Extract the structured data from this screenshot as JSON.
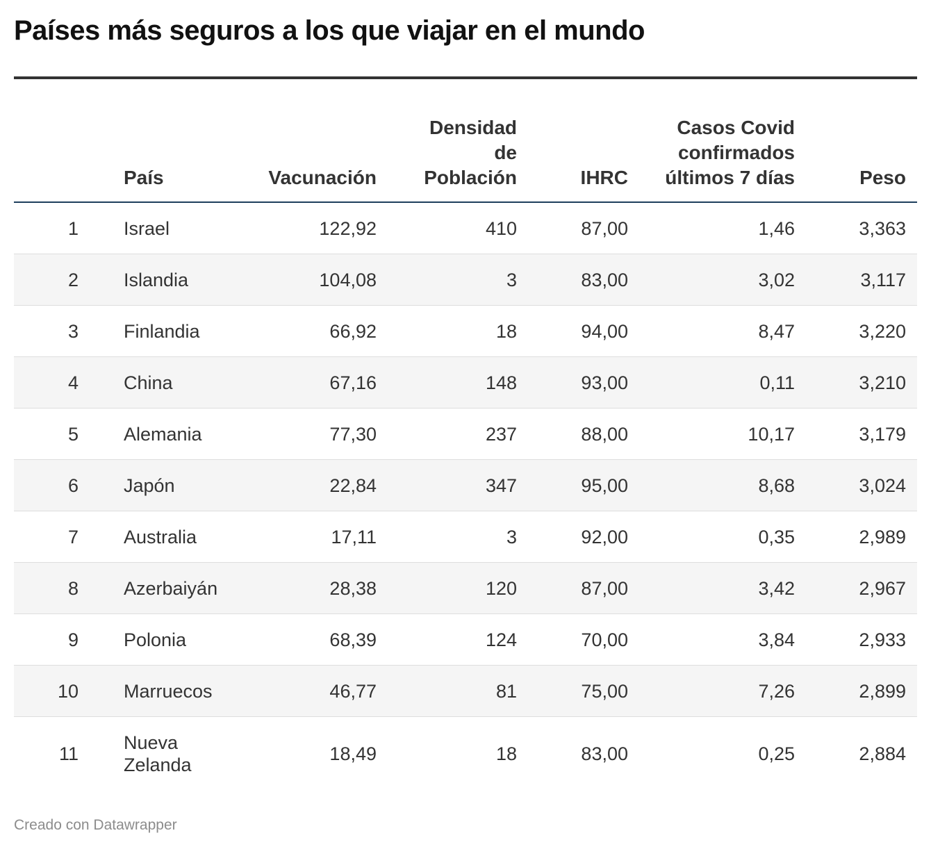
{
  "title": "Países más seguros a los que viajar en el mundo",
  "headers": {
    "rank": "",
    "pais": "País",
    "vacunacion": "Vacunación",
    "densidad": "Densidad de Población",
    "ihrc": "IHRC",
    "covid": "Casos Covid confirmados últimos 7 días",
    "peso": "Peso"
  },
  "rows": [
    {
      "rank": "1",
      "pais": "Israel",
      "vacunacion": "122,92",
      "densidad": "410",
      "ihrc": "87,00",
      "covid": "1,46",
      "peso": "3,363"
    },
    {
      "rank": "2",
      "pais": "Islandia",
      "vacunacion": "104,08",
      "densidad": "3",
      "ihrc": "83,00",
      "covid": "3,02",
      "peso": "3,117"
    },
    {
      "rank": "3",
      "pais": "Finlandia",
      "vacunacion": "66,92",
      "densidad": "18",
      "ihrc": "94,00",
      "covid": "8,47",
      "peso": "3,220"
    },
    {
      "rank": "4",
      "pais": "China",
      "vacunacion": "67,16",
      "densidad": "148",
      "ihrc": "93,00",
      "covid": "0,11",
      "peso": "3,210"
    },
    {
      "rank": "5",
      "pais": "Alemania",
      "vacunacion": "77,30",
      "densidad": "237",
      "ihrc": "88,00",
      "covid": "10,17",
      "peso": "3,179"
    },
    {
      "rank": "6",
      "pais": "Japón",
      "vacunacion": "22,84",
      "densidad": "347",
      "ihrc": "95,00",
      "covid": "8,68",
      "peso": "3,024"
    },
    {
      "rank": "7",
      "pais": "Australia",
      "vacunacion": "17,11",
      "densidad": "3",
      "ihrc": "92,00",
      "covid": "0,35",
      "peso": "2,989"
    },
    {
      "rank": "8",
      "pais": "Azerbaiyán",
      "vacunacion": "28,38",
      "densidad": "120",
      "ihrc": "87,00",
      "covid": "3,42",
      "peso": "2,967"
    },
    {
      "rank": "9",
      "pais": "Polonia",
      "vacunacion": "68,39",
      "densidad": "124",
      "ihrc": "70,00",
      "covid": "3,84",
      "peso": "2,933"
    },
    {
      "rank": "10",
      "pais": "Marruecos",
      "vacunacion": "46,77",
      "densidad": "81",
      "ihrc": "75,00",
      "covid": "7,26",
      "peso": "2,899"
    },
    {
      "rank": "11",
      "pais": "Nueva Zelanda",
      "vacunacion": "18,49",
      "densidad": "18",
      "ihrc": "83,00",
      "covid": "0,25",
      "peso": "2,884"
    }
  ],
  "footer": "Creado con Datawrapper",
  "chart_data": {
    "type": "table",
    "title": "Países más seguros a los que viajar en el mundo",
    "columns": [
      "",
      "País",
      "Vacunación",
      "Densidad de Población",
      "IHRC",
      "Casos Covid confirmados últimos 7 días",
      "Peso"
    ],
    "rows": [
      [
        1,
        "Israel",
        122.92,
        410,
        87.0,
        1.46,
        3.363
      ],
      [
        2,
        "Islandia",
        104.08,
        3,
        83.0,
        3.02,
        3.117
      ],
      [
        3,
        "Finlandia",
        66.92,
        18,
        94.0,
        8.47,
        3.22
      ],
      [
        4,
        "China",
        67.16,
        148,
        93.0,
        0.11,
        3.21
      ],
      [
        5,
        "Alemania",
        77.3,
        237,
        88.0,
        10.17,
        3.179
      ],
      [
        6,
        "Japón",
        22.84,
        347,
        95.0,
        8.68,
        3.024
      ],
      [
        7,
        "Australia",
        17.11,
        3,
        92.0,
        0.35,
        2.989
      ],
      [
        8,
        "Azerbaiyán",
        28.38,
        120,
        87.0,
        3.42,
        2.967
      ],
      [
        9,
        "Polonia",
        68.39,
        124,
        70.0,
        3.84,
        2.933
      ],
      [
        10,
        "Marruecos",
        46.77,
        81,
        75.0,
        7.26,
        2.899
      ],
      [
        11,
        "Nueva Zelanda",
        18.49,
        18,
        83.0,
        0.25,
        2.884
      ]
    ]
  }
}
